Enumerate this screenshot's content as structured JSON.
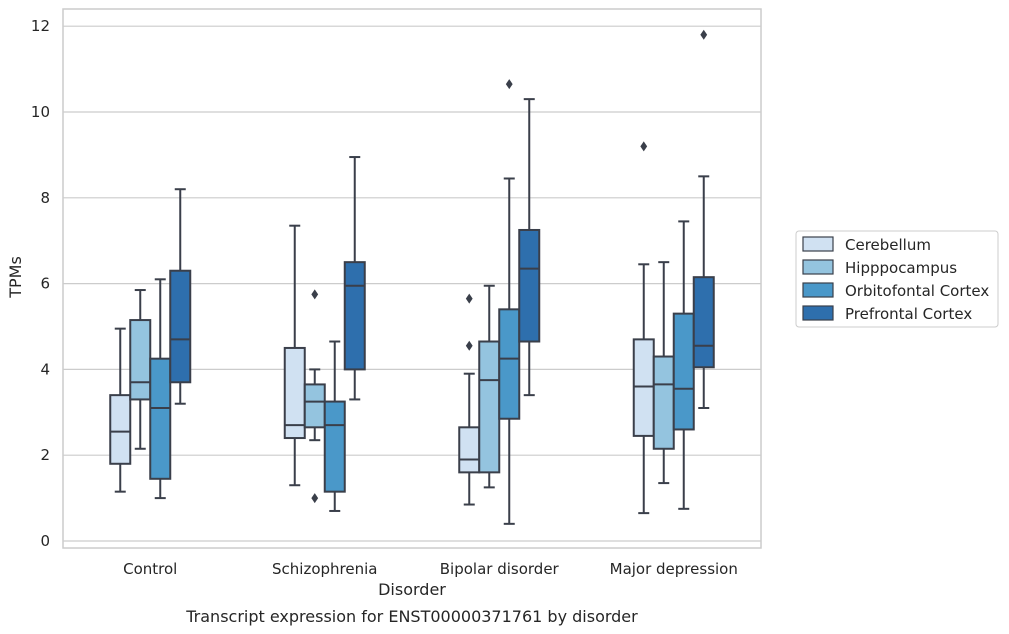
{
  "chart_data": {
    "type": "box",
    "caption": "Transcript expression for ENST00000371761 by disorder",
    "xlabel": "Disorder",
    "ylabel": "TPMs",
    "ylim": [
      -0.2,
      12.4
    ],
    "yticks": [
      0,
      2,
      4,
      6,
      8,
      10,
      12
    ],
    "grid": "horizontal",
    "legend_position": "right",
    "categories": [
      "Control",
      "Schizophrenia",
      "Bipolar disorder",
      "Major depression"
    ],
    "series": [
      {
        "name": "Cerebellum",
        "color": "#d0e1f2",
        "boxes": [
          {
            "whislo": 1.15,
            "q1": 1.8,
            "med": 2.55,
            "q3": 3.4,
            "whishi": 4.95,
            "fliers": []
          },
          {
            "whislo": 1.3,
            "q1": 2.4,
            "med": 2.7,
            "q3": 4.5,
            "whishi": 7.35,
            "fliers": []
          },
          {
            "whislo": 0.85,
            "q1": 1.6,
            "med": 1.9,
            "q3": 2.65,
            "whishi": 3.9,
            "fliers": [
              4.55,
              5.65
            ]
          },
          {
            "whislo": 0.65,
            "q1": 2.45,
            "med": 3.6,
            "q3": 4.7,
            "whishi": 6.45,
            "fliers": [
              9.2
            ]
          }
        ]
      },
      {
        "name": "Hipppocampus",
        "color": "#94c4df",
        "boxes": [
          {
            "whislo": 2.15,
            "q1": 3.3,
            "med": 3.7,
            "q3": 5.15,
            "whishi": 5.85,
            "fliers": []
          },
          {
            "whislo": 2.35,
            "q1": 2.65,
            "med": 3.25,
            "q3": 3.65,
            "whishi": 4.0,
            "fliers": [
              1.0,
              5.75
            ]
          },
          {
            "whislo": 1.25,
            "q1": 1.6,
            "med": 3.75,
            "q3": 4.65,
            "whishi": 5.95,
            "fliers": []
          },
          {
            "whislo": 1.35,
            "q1": 2.15,
            "med": 3.65,
            "q3": 4.3,
            "whishi": 6.5,
            "fliers": []
          }
        ]
      },
      {
        "name": "Orbitofontal Cortex",
        "color": "#4a98c9",
        "boxes": [
          {
            "whislo": 1.0,
            "q1": 1.45,
            "med": 3.1,
            "q3": 4.25,
            "whishi": 6.1,
            "fliers": []
          },
          {
            "whislo": 0.7,
            "q1": 1.15,
            "med": 2.7,
            "q3": 3.25,
            "whishi": 4.65,
            "fliers": []
          },
          {
            "whislo": 0.4,
            "q1": 2.85,
            "med": 4.25,
            "q3": 5.4,
            "whishi": 8.45,
            "fliers": [
              10.65
            ]
          },
          {
            "whislo": 0.75,
            "q1": 2.6,
            "med": 3.55,
            "q3": 5.3,
            "whishi": 7.45,
            "fliers": []
          }
        ]
      },
      {
        "name": "Prefrontal Cortex",
        "color": "#2e6fad",
        "boxes": [
          {
            "whislo": 3.2,
            "q1": 3.7,
            "med": 4.7,
            "q3": 6.3,
            "whishi": 8.2,
            "fliers": []
          },
          {
            "whislo": 3.3,
            "q1": 4.0,
            "med": 5.95,
            "q3": 6.5,
            "whishi": 8.95,
            "fliers": []
          },
          {
            "whislo": 3.4,
            "q1": 4.65,
            "med": 6.35,
            "q3": 7.25,
            "whishi": 10.3,
            "fliers": []
          },
          {
            "whislo": 3.1,
            "q1": 4.05,
            "med": 4.55,
            "q3": 6.15,
            "whishi": 8.5,
            "fliers": [
              11.8
            ]
          }
        ]
      }
    ]
  }
}
